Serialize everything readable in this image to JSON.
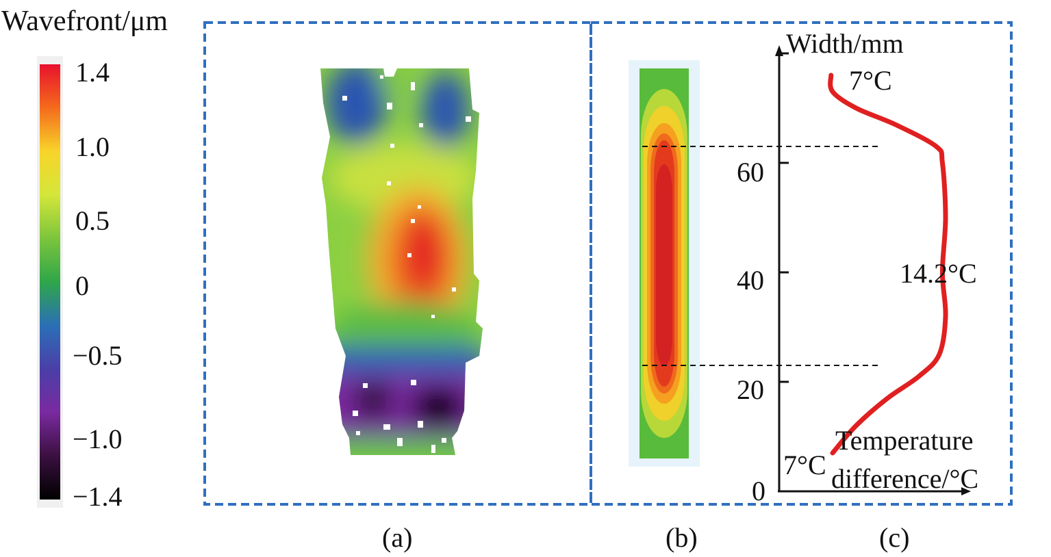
{
  "colorbar": {
    "title": "Wavefront/μm",
    "ticks": [
      "1.4",
      "1.0",
      "0.5",
      "0",
      "−0.5",
      "−1.0",
      "−1.4"
    ],
    "colors": [
      "#e8112d",
      "#f46b1c",
      "#f8d42a",
      "#d4e63a",
      "#7cc53c",
      "#2fa64a",
      "#2b6fb7",
      "#4a3fa8",
      "#7a2aa0",
      "#3a1040",
      "#000000"
    ]
  },
  "panel_labels": {
    "a": "(a)",
    "b": "(b)",
    "c": "(c)"
  },
  "plot_c": {
    "y_axis_label": "Width/mm",
    "x_axis_label_line1": "Temperature",
    "x_axis_label_line2": "difference/°C",
    "y_ticks": [
      "0",
      "20",
      "40",
      "60"
    ],
    "annotation_top": "7°C",
    "annotation_middle": "14.2°C",
    "annotation_bottom": "7°C",
    "dashed_levels_mm": [
      63,
      23
    ],
    "curve_color": "#e02020",
    "profile": [
      {
        "width_mm": 7,
        "temp_c": 7.0
      },
      {
        "width_mm": 12,
        "temp_c": 8.5
      },
      {
        "width_mm": 17,
        "temp_c": 10.5
      },
      {
        "width_mm": 21,
        "temp_c": 12.5
      },
      {
        "width_mm": 25,
        "temp_c": 13.8
      },
      {
        "width_mm": 32,
        "temp_c": 14.2
      },
      {
        "width_mm": 40,
        "temp_c": 14.0
      },
      {
        "width_mm": 50,
        "temp_c": 14.2
      },
      {
        "width_mm": 60,
        "temp_c": 14.0
      },
      {
        "width_mm": 63,
        "temp_c": 13.6
      },
      {
        "width_mm": 67,
        "temp_c": 11.0
      },
      {
        "width_mm": 70,
        "temp_c": 8.5
      },
      {
        "width_mm": 73,
        "temp_c": 7.0
      },
      {
        "width_mm": 76,
        "temp_c": 6.9
      }
    ]
  },
  "frame_color": "#2f6fc0"
}
